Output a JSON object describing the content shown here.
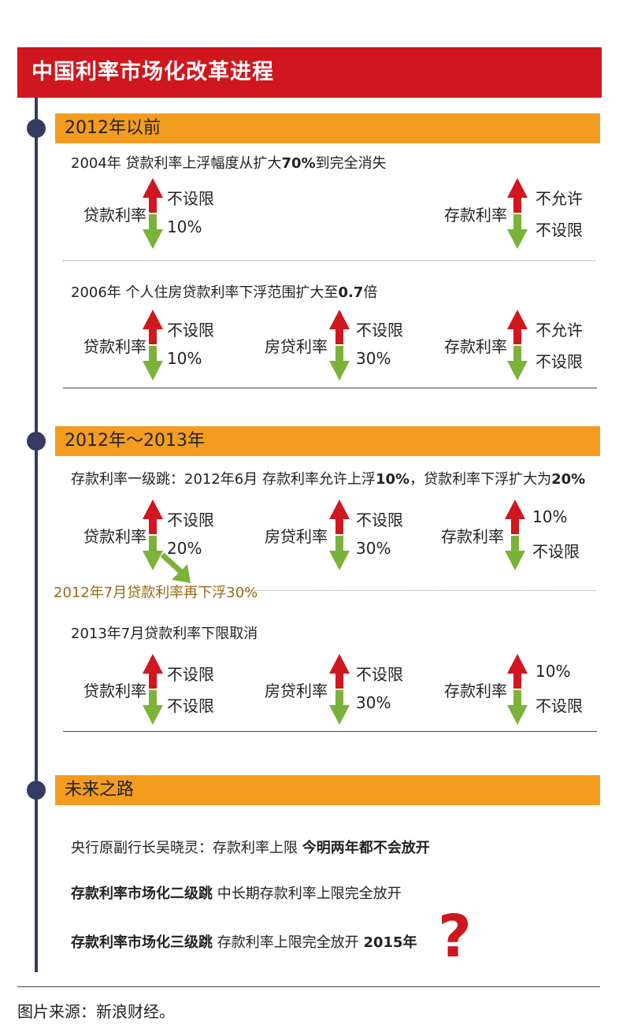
{
  "title": "中国利率市场化改革进程",
  "colors": {
    "red": "#d0161e",
    "orange": "#f39c1f",
    "green": "#7bb33a",
    "navy": "#353a63"
  },
  "sections": {
    "s1": {
      "heading": "2012年以前",
      "e1": {
        "prefix": "2004年 贷款利率上浮幅度从扩大",
        "bold1": "70%",
        "suffix": "到完全消失",
        "loan": {
          "label": "贷款利率",
          "up": "不设限",
          "down": "10%"
        },
        "deposit": {
          "label": "存款利率",
          "up": "不允许",
          "down": "不设限"
        }
      },
      "e2": {
        "prefix": "2006年 个人住房贷款利率下浮范围扩大至",
        "bold1": "0.7",
        "suffix": "倍",
        "loan": {
          "label": "贷款利率",
          "up": "不设限",
          "down": "10%"
        },
        "mortgage": {
          "label": "房贷利率",
          "up": "不设限",
          "down": "30%"
        },
        "deposit": {
          "label": "存款利率",
          "up": "不允许",
          "down": "不设限"
        }
      }
    },
    "s2": {
      "heading": "2012年～2013年",
      "e1": {
        "prefix": "存款利率一级跳：2012年6月 存款利率允许上浮",
        "bold1": "10%",
        "mid": "，贷款利率下浮扩大为",
        "bold2": "20%",
        "loan": {
          "label": "贷款利率",
          "up": "不设限",
          "down": "20%"
        },
        "mortgage": {
          "label": "房贷利率",
          "up": "不设限",
          "down": "30%"
        },
        "deposit": {
          "label": "存款利率",
          "up": "10%",
          "down": "不设限"
        }
      },
      "note": "2012年7月贷款利率再下浮30%",
      "e2": {
        "text": "2013年7月贷款利率下限取消",
        "loan": {
          "label": "贷款利率",
          "up": "不设限",
          "down": "不设限"
        },
        "mortgage": {
          "label": "房贷利率",
          "up": "不设限",
          "down": "30%"
        },
        "deposit": {
          "label": "存款利率",
          "up": "10%",
          "down": "不设限"
        }
      }
    },
    "s3": {
      "heading": "未来之路",
      "l1_normal": "央行原副行长吴晓灵：存款利率上限 ",
      "l1_bold": "今明两年都不会放开",
      "l2_bold": "存款利率市场化二级跳",
      "l2_normal": " 中长期存款利率上限完全放开",
      "l3_bold": "存款利率市场化三级跳",
      "l3_normal": " 存款利率上限完全放开 ",
      "l3_year": "2015年",
      "qmark": "?"
    }
  },
  "source": "图片来源：新浪财经。"
}
